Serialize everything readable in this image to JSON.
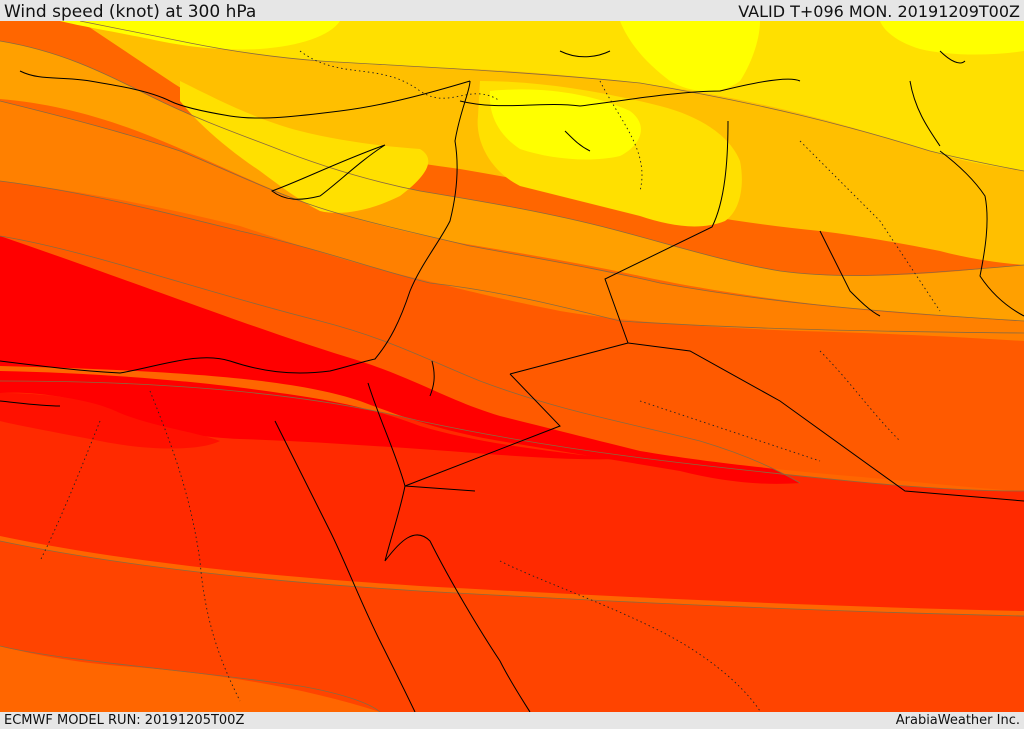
{
  "header": {
    "title": "Wind speed (knot) at 300 hPa",
    "valid": "VALID T+096 MON. 20191209T00Z"
  },
  "footer": {
    "model_run": "ECMWF MODEL RUN: 20191205T00Z",
    "credit": "ArabiaWeather Inc."
  },
  "colors": {
    "band_1": "#ffff00",
    "band_2": "#ffe000",
    "band_3": "#ffbf00",
    "band_4": "#ff9a00",
    "band_5": "#ff7a00",
    "band_6": "#ff5500",
    "band_7": "#ff3300",
    "band_8": "#ff1a00",
    "band_9": "#ff0000",
    "contour": "#8a6a40",
    "coastline": "#000000",
    "border": "#000000"
  }
}
